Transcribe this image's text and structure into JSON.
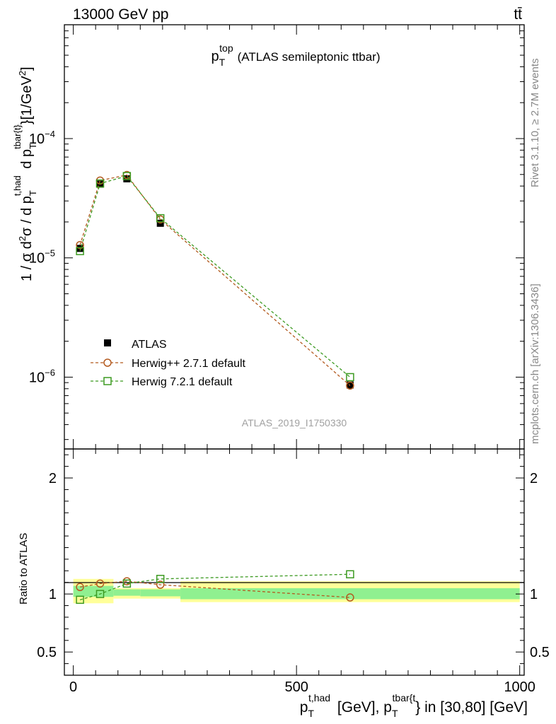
{
  "header": {
    "energy_label": "13000 GeV pp",
    "process_label": "tt̄"
  },
  "side_labels": {
    "rivet": "Rivet 3.1.10, ≥ 2.7M events",
    "mcplots": "mcplots.cern.ch [arXiv:1306.3436]"
  },
  "analysis_id": "ATLAS_2019_I1750330",
  "chart_data": [
    {
      "type": "line",
      "title": {
        "main": "p",
        "sub": "T",
        "sup": "top",
        "rest": "(ATLAS semileptonic ttbar)"
      },
      "ylabel": "1 / σ d²σ / d p_T^{t,had} d p_T^{tbar{t}} [1/GeV²]",
      "yscale": "log",
      "ylim": [
        2.5e-07,
        0.0009
      ],
      "xlim": [
        -20,
        1010
      ],
      "yticks": [
        {
          "value": 1e-06,
          "label": "10",
          "exp": "−6"
        },
        {
          "value": 1e-05,
          "label": "10",
          "exp": "−5"
        },
        {
          "value": 0.0001,
          "label": "10",
          "exp": "−4"
        }
      ],
      "legend_position": "bottom-left",
      "series": [
        {
          "name": "ATLAS",
          "style": "data",
          "color": "#000000",
          "x": [
            15,
            60,
            120,
            195,
            620
          ],
          "y": [
            1.2e-05,
            4.15e-05,
            4.6e-05,
            1.95e-05,
            8.6e-07
          ]
        },
        {
          "name": "Herwig++ 2.7.1 default",
          "style": "circle",
          "color": "#b35a1f",
          "x": [
            15,
            60,
            120,
            195,
            620
          ],
          "y": [
            1.28e-05,
            4.45e-05,
            4.95e-05,
            2.1e-05,
            8.5e-07
          ]
        },
        {
          "name": "Herwig 7.2.1 default",
          "style": "square",
          "color": "#3c9a21",
          "x": [
            15,
            60,
            120,
            195,
            620
          ],
          "y": [
            1.14e-05,
            4.2e-05,
            4.85e-05,
            2.15e-05,
            1e-06
          ]
        }
      ]
    },
    {
      "type": "line",
      "ylabel": "Ratio to ATLAS",
      "xlabel": "p_T^{t,had} [GeV], p_T^{tbar{t}} in [30,80] [GeV]",
      "ylim": [
        0.3,
        2.25
      ],
      "xlim": [
        -20,
        1010
      ],
      "yticks": [
        {
          "value": 0.5,
          "label": "0.5"
        },
        {
          "value": 1,
          "label": "1"
        },
        {
          "value": 2,
          "label": "2"
        }
      ],
      "xticks": [
        {
          "value": 0,
          "label": "0"
        },
        {
          "value": 500,
          "label": "500"
        },
        {
          "value": 1000,
          "label": "1000"
        }
      ],
      "bands": [
        {
          "x0": 0,
          "x1": 90,
          "green": [
            0.975,
            1.07
          ],
          "yellow": [
            0.92,
            1.13
          ]
        },
        {
          "x0": 90,
          "x1": 150,
          "green": [
            0.985,
            1.04
          ],
          "yellow": [
            0.96,
            1.05
          ]
        },
        {
          "x0": 150,
          "x1": 240,
          "green": [
            0.98,
            1.04
          ],
          "yellow": [
            0.96,
            1.05
          ]
        },
        {
          "x0": 240,
          "x1": 1000,
          "green": [
            0.955,
            1.05
          ],
          "yellow": [
            0.93,
            1.11
          ]
        }
      ],
      "series": [
        {
          "name": "Herwig++ 2.7.1 default",
          "style": "circle",
          "color": "#b35a1f",
          "x": [
            15,
            60,
            120,
            195,
            620
          ],
          "y": [
            1.06,
            1.09,
            1.11,
            1.08,
            0.97
          ]
        },
        {
          "name": "Herwig 7.2.1 default",
          "style": "square",
          "color": "#3c9a21",
          "x": [
            15,
            60,
            120,
            195,
            620
          ],
          "y": [
            0.95,
            1.0,
            1.09,
            1.13,
            1.17
          ]
        }
      ]
    }
  ]
}
